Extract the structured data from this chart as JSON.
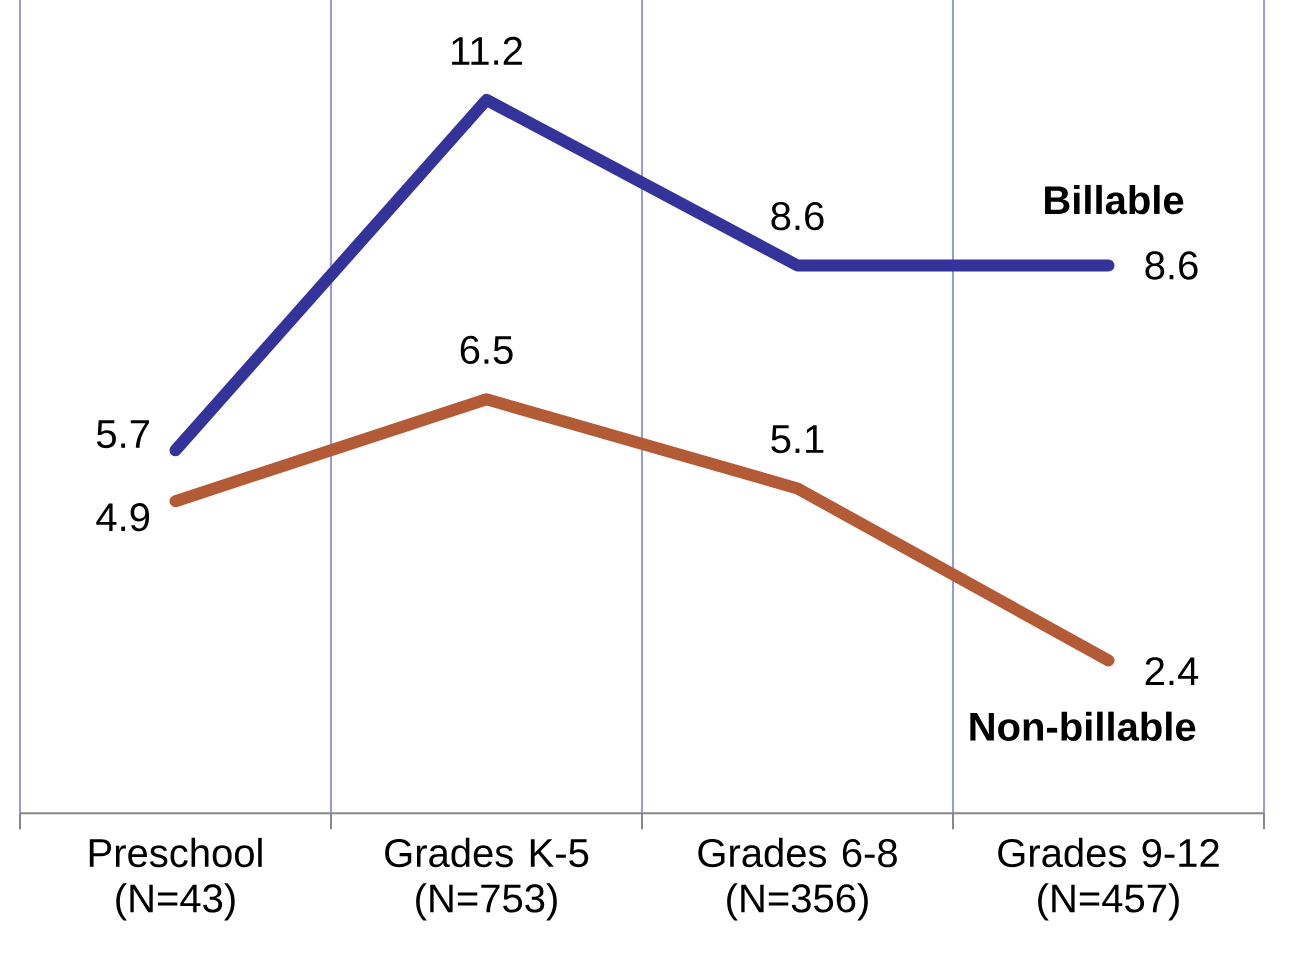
{
  "chart_data": {
    "type": "line",
    "categories": [
      "Preschool (N=43)",
      "Grades K-5 (N=753)",
      "Grades 6-8 (N=356)",
      "Grades 9-12 (N=457)"
    ],
    "series": [
      {
        "name": "Billable",
        "color": "#333399",
        "values": [
          5.7,
          11.2,
          8.6,
          8.6
        ]
      },
      {
        "name": "Non-billable",
        "color": "#b35a36",
        "values": [
          4.9,
          6.5,
          5.1,
          2.4
        ]
      }
    ],
    "data_labels": true,
    "grid": "x",
    "marker": "none",
    "line_style": "solid"
  }
}
